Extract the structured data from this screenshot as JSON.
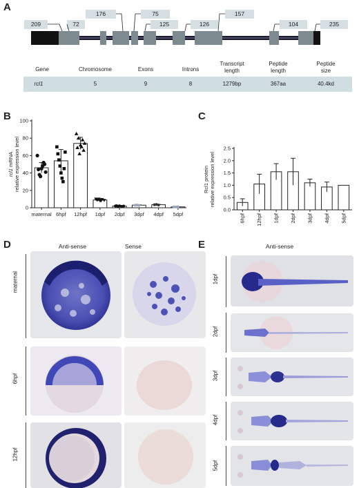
{
  "panels": {
    "a": "A",
    "b": "B",
    "c": "C",
    "d": "D",
    "e": "E"
  },
  "gene_structure": {
    "exon_lengths": [
      "209",
      "72",
      "176",
      "75",
      "125",
      "126",
      "157",
      "104",
      "235"
    ],
    "colors": {
      "utr": "#111111",
      "exon": "#7d8a8f",
      "intron": "#1a1a2e",
      "label_bg": "#d5dfe3",
      "table_bg": "#d0dde2"
    }
  },
  "info_table": {
    "headers": [
      "Gene",
      "Chromosome",
      "Exons",
      "Introns",
      "Transcript length",
      "Peptide length",
      "Peptide size"
    ],
    "values": [
      "rcl1",
      "5",
      "9",
      "8",
      "1279bp",
      "367aa",
      "40.4kd"
    ]
  },
  "chart_data": [
    {
      "type": "bar",
      "panel": "B",
      "ylabel_italic": "rcl1",
      "ylabel_rest": " mRNA",
      "ylabel2": "relative expression level",
      "categories": [
        "maternal",
        "6hpf",
        "12hpf",
        "1dpf",
        "2dpf",
        "3dpf",
        "4dpf",
        "5dpf"
      ],
      "values": [
        46,
        54,
        74,
        9,
        2,
        3,
        3.5,
        1
      ],
      "errors": [
        6,
        13,
        7,
        1,
        0.3,
        0.3,
        0.3,
        0.2
      ],
      "ylim": [
        0,
        100
      ],
      "yticks": [
        "0",
        "20",
        "40",
        "60",
        "80",
        "100"
      ],
      "points": [
        [
          60,
          38,
          45,
          52,
          41,
          44,
          36,
          48,
          50
        ],
        [
          70,
          55,
          40,
          30,
          64,
          62,
          48,
          34,
          45
        ],
        [
          85,
          80,
          72,
          78,
          74,
          69,
          62,
          70,
          66
        ],
        [
          10,
          9,
          8,
          9.5,
          8.5,
          9,
          10,
          8
        ],
        [
          2,
          1.8,
          2.2,
          1.6,
          2,
          2.4,
          1.9
        ],
        [
          3,
          3.2,
          2.8
        ],
        [
          3.5,
          3.8,
          3.2
        ],
        [
          1,
          0.9,
          1.1
        ]
      ],
      "marker_colors": [
        "#111111",
        "#111111",
        "#111111",
        "#111111",
        "#111111",
        "#9aa6b8",
        "#333333",
        "#9aa6b8"
      ]
    },
    {
      "type": "bar",
      "panel": "C",
      "ylabel": "Rcl1 protein",
      "ylabel2": "relative expression level",
      "categories": [
        "6hpf",
        "12hpf",
        "1dpf",
        "2dpf",
        "3dpf",
        "4dpf",
        "5dpf"
      ],
      "values": [
        0.3,
        1.05,
        1.55,
        1.55,
        1.1,
        0.93,
        1.0
      ],
      "errors": [
        0.15,
        0.4,
        0.33,
        0.55,
        0.15,
        0.2,
        0
      ],
      "ylim": [
        0,
        2.5
      ],
      "yticks": [
        "0.0",
        "0.5",
        "1.0",
        "1.5",
        "2.0",
        "2.5"
      ]
    }
  ],
  "panel_d": {
    "col_headers": [
      "Anti-sense",
      "Sense"
    ],
    "row_labels": [
      "maternal",
      "6hpf",
      "12hpf"
    ]
  },
  "panel_e": {
    "col_header": "Anti-sense",
    "row_labels": [
      "1dpf",
      "2dpf",
      "3dpf",
      "4dpf",
      "5dpf"
    ]
  }
}
